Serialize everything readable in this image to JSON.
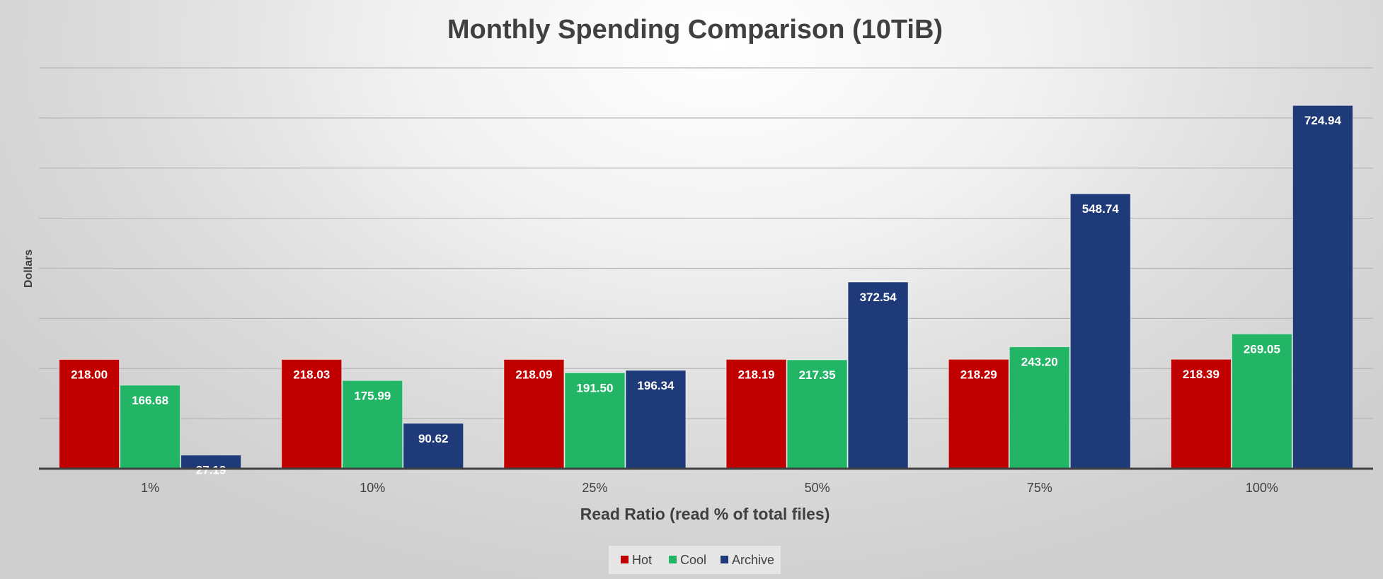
{
  "chart_data": {
    "type": "bar",
    "title": "Monthly Spending Comparison (10TiB)",
    "xlabel": "Read Ratio (read % of total files)",
    "ylabel": "Dollars",
    "categories": [
      "1%",
      "10%",
      "25%",
      "50%",
      "75%",
      "100%"
    ],
    "series": [
      {
        "name": "Hot",
        "color": "#C00000",
        "values": [
          218.0,
          218.03,
          218.09,
          218.19,
          218.29,
          218.39
        ]
      },
      {
        "name": "Cool",
        "color": "#22B565",
        "values": [
          166.68,
          175.99,
          191.5,
          217.35,
          243.2,
          269.05
        ]
      },
      {
        "name": "Archive",
        "color": "#1F3A78",
        "values": [
          27.19,
          90.62,
          196.34,
          372.54,
          548.74,
          724.94
        ]
      }
    ],
    "ylim": [
      0,
      800
    ],
    "grid": true,
    "legend_position": "bottom",
    "data_labels": [
      "218.00",
      "218.03",
      "218.09",
      "218.19",
      "218.29",
      "218.39",
      "166.68",
      "175.99",
      "191.50",
      "217.35",
      "243.20",
      "269.05",
      "27.19",
      "90.62",
      "196.34",
      "372.54",
      "548.74",
      "724.94"
    ]
  }
}
